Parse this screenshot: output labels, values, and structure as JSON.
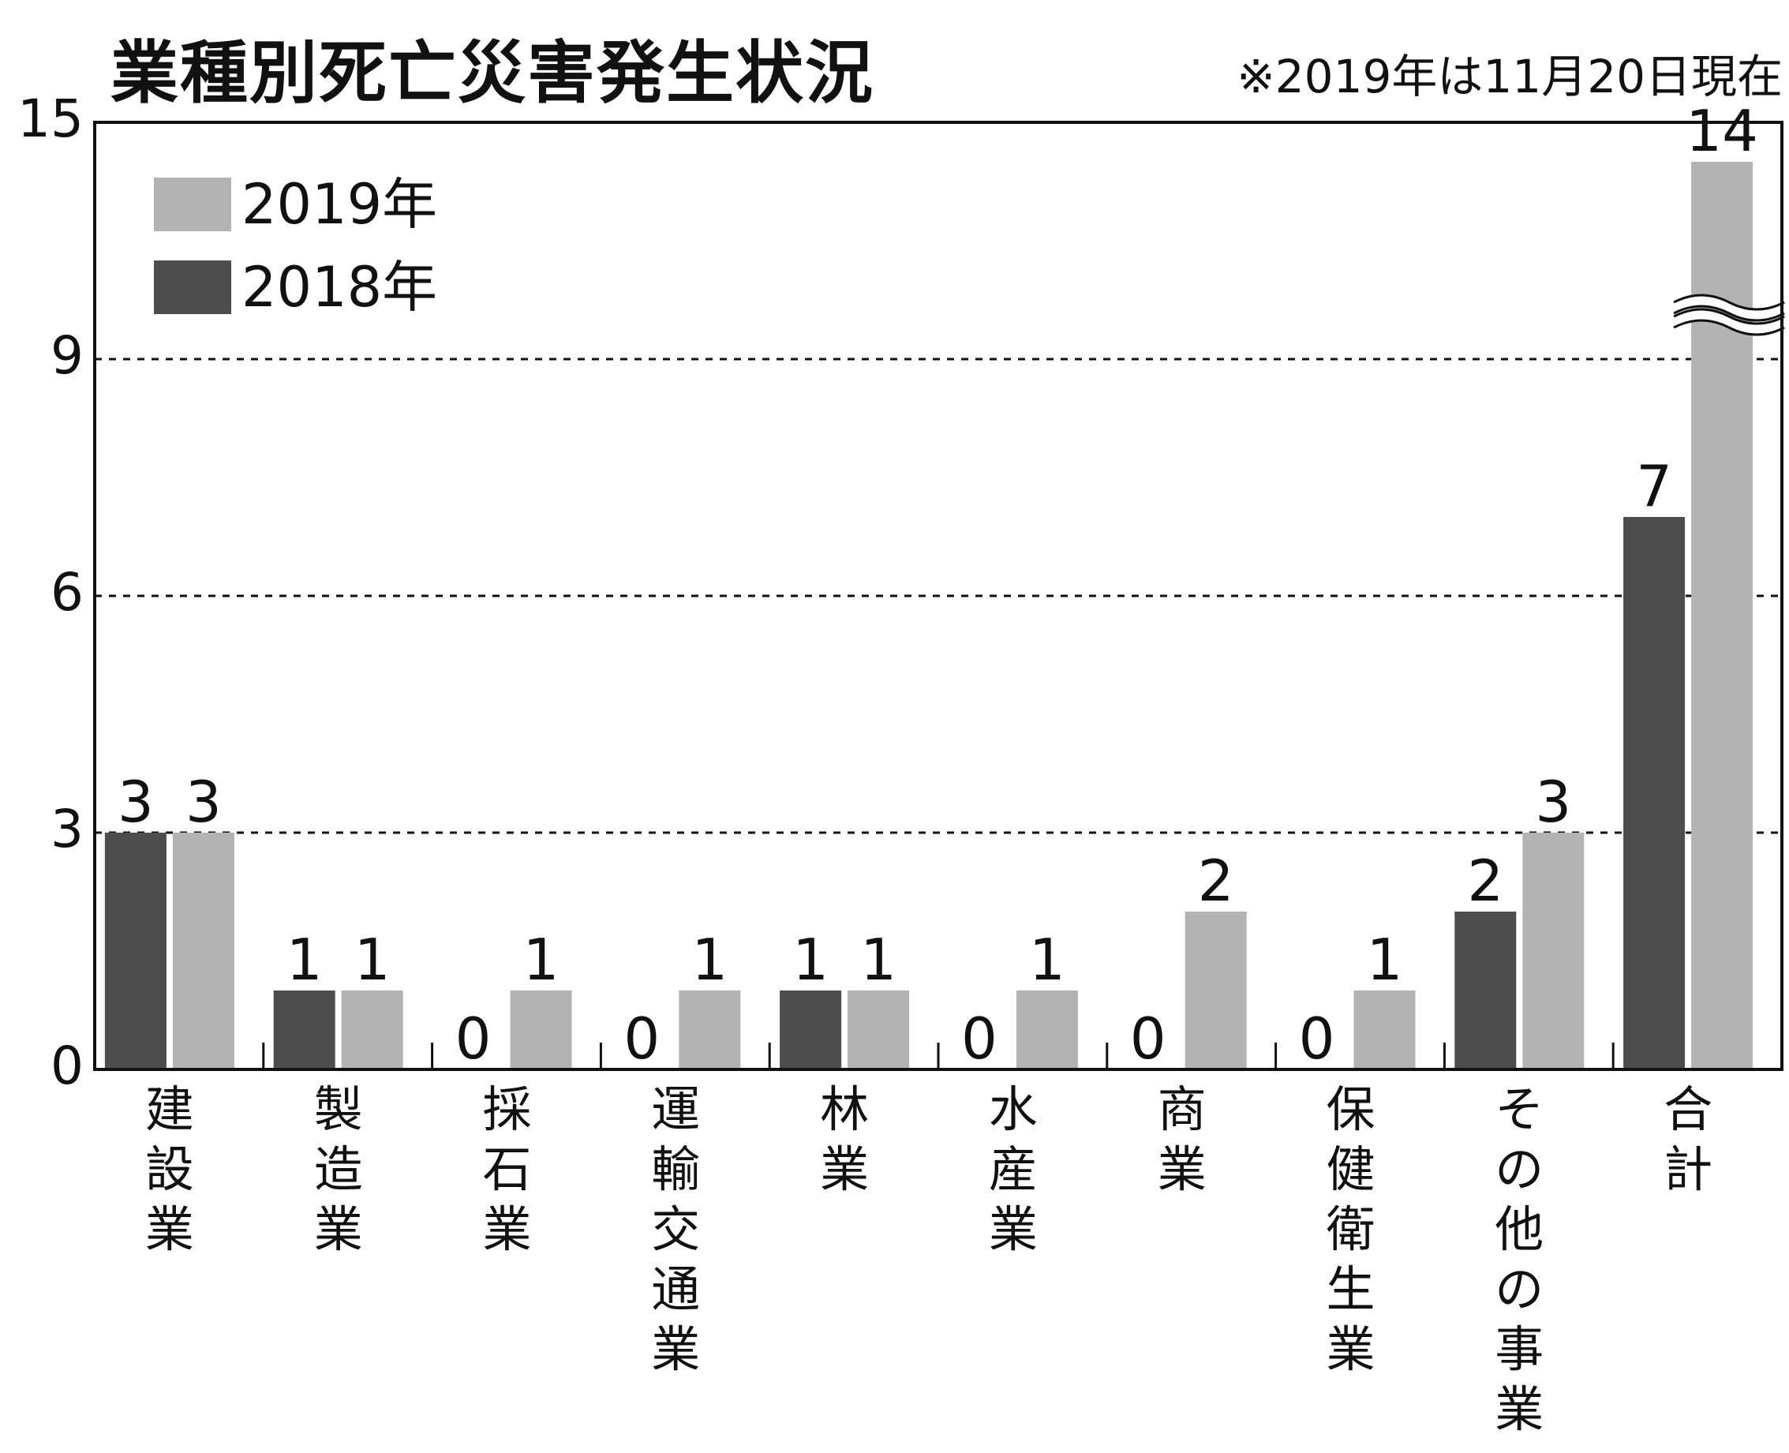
{
  "title": "業種別死亡災害発生状況",
  "note": "※2019年は11月20日現在",
  "colors": {
    "y2018": "#4d4d4d",
    "y2019": "#b3b3b3"
  },
  "chart_data": {
    "type": "bar",
    "title": "業種別死亡災害発生状況",
    "categories": [
      "建設業",
      "製造業",
      "採石業",
      "運輸交通業",
      "林業",
      "水産業",
      "商業",
      "保健衛生業",
      "その他の事業",
      "合計"
    ],
    "series": [
      {
        "name": "2018年",
        "values": [
          3,
          1,
          0,
          0,
          1,
          0,
          0,
          0,
          2,
          7
        ]
      },
      {
        "name": "2019年",
        "values": [
          3,
          1,
          1,
          1,
          1,
          1,
          2,
          1,
          3,
          14
        ]
      }
    ],
    "yticks": [
      0,
      3,
      6,
      9,
      15
    ],
    "ylim": [
      0,
      15
    ],
    "axis_break": "9–15",
    "grid": "dashed at 3, 6, 9",
    "legend": "top-left",
    "legend_order": [
      "2019年",
      "2018年"
    ]
  }
}
